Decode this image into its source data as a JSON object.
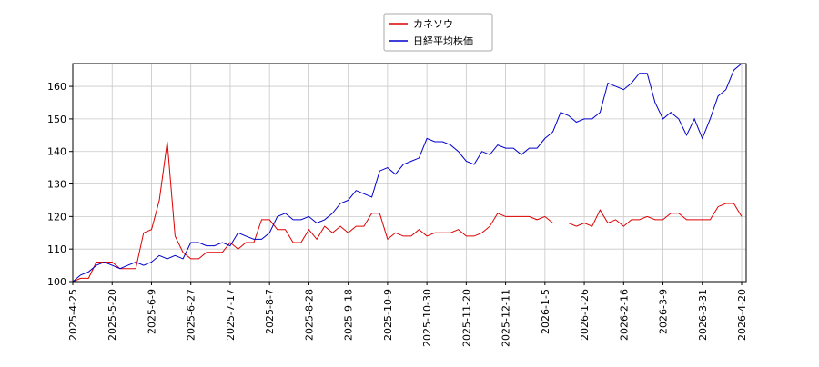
{
  "chart_data": {
    "type": "line",
    "categories": [
      "2025-4-25",
      null,
      null,
      null,
      null,
      "2025-5-20",
      null,
      null,
      null,
      null,
      "2025-6-9",
      null,
      null,
      null,
      null,
      "2025-6-27",
      null,
      null,
      null,
      null,
      "2025-7-17",
      null,
      null,
      null,
      null,
      "2025-8-7",
      null,
      null,
      null,
      null,
      "2025-8-28",
      null,
      null,
      null,
      null,
      "2025-9-18",
      null,
      null,
      null,
      null,
      "2025-10-9",
      null,
      null,
      null,
      null,
      "2025-10-30",
      null,
      null,
      null,
      null,
      "2025-11-20",
      null,
      null,
      null,
      null,
      "2025-12-11",
      null,
      null,
      null,
      null,
      "2026-1-5",
      null,
      null,
      null,
      null,
      "2026-1-26",
      null,
      null,
      null,
      null,
      "2026-2-16",
      null,
      null,
      null,
      null,
      "2026-3-9",
      null,
      null,
      null,
      null,
      "2026-3-31",
      null,
      null,
      null,
      null,
      "2026-4-20"
    ],
    "series": [
      {
        "name": "カネソウ",
        "color": "#dd0000",
        "values": [
          100,
          101,
          101,
          106,
          106,
          106,
          104,
          104,
          104,
          115,
          116,
          125,
          143,
          114,
          109,
          107,
          107,
          109,
          109,
          109,
          112,
          110,
          112,
          112,
          119,
          119,
          116,
          116,
          112,
          112,
          116,
          113,
          117,
          115,
          117,
          115,
          117,
          117,
          121,
          121,
          113,
          115,
          114,
          114,
          116,
          114,
          115,
          115,
          115,
          116,
          114,
          114,
          115,
          117,
          121,
          120,
          120,
          120,
          120,
          119,
          120,
          118,
          118,
          118,
          117,
          118,
          117,
          122,
          118,
          119,
          117,
          119,
          119,
          120,
          119,
          119,
          121,
          121,
          119,
          119,
          119,
          119,
          123,
          124,
          124,
          120
        ]
      },
      {
        "name": "日経平均株価",
        "color": "#0000cc",
        "values": [
          100,
          102,
          103,
          105,
          106,
          105,
          104,
          105,
          106,
          105,
          106,
          108,
          107,
          108,
          107,
          112,
          112,
          111,
          111,
          112,
          111,
          115,
          114,
          113,
          113,
          115,
          120,
          121,
          119,
          119,
          120,
          118,
          119,
          121,
          124,
          125,
          128,
          127,
          126,
          134,
          135,
          133,
          136,
          137,
          138,
          144,
          143,
          143,
          142,
          140,
          137,
          136,
          140,
          139,
          142,
          141,
          141,
          139,
          141,
          141,
          144,
          146,
          152,
          151,
          149,
          150,
          150,
          152,
          161,
          160,
          159,
          161,
          164,
          164,
          155,
          150,
          152,
          150,
          145,
          150,
          144,
          150,
          157,
          159,
          165,
          167
        ]
      }
    ],
    "ylim": [
      100,
      167
    ],
    "yticks": [
      100,
      110,
      120,
      130,
      140,
      150,
      160
    ],
    "grid": true,
    "legend": "top"
  }
}
